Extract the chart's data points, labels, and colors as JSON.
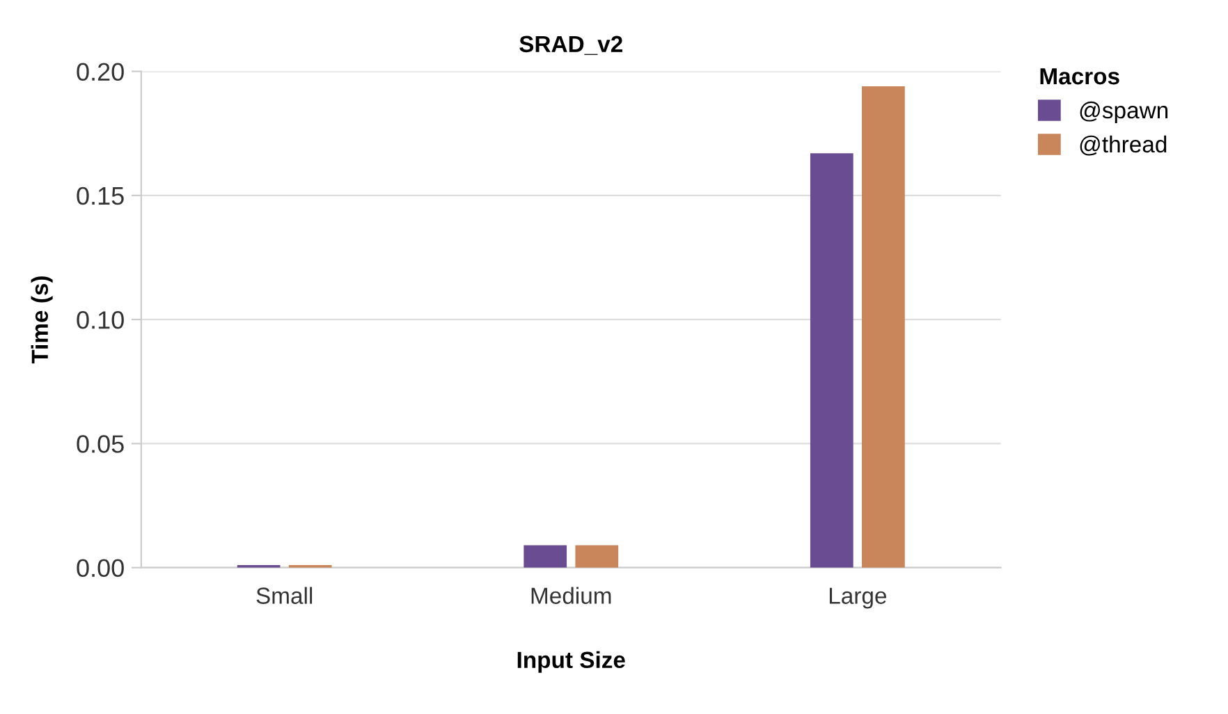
{
  "chart_data": {
    "type": "bar",
    "title": "SRAD_v2",
    "xlabel": "Input Size",
    "ylabel": "Time (s)",
    "legend_title": "Macros",
    "categories": [
      "Small",
      "Medium",
      "Large"
    ],
    "series": [
      {
        "name": "@spawn",
        "color": "#6a4c93",
        "values": [
          0.001,
          0.009,
          0.167
        ]
      },
      {
        "name": "@thread",
        "color": "#c8865a",
        "values": [
          0.001,
          0.009,
          0.194
        ]
      }
    ],
    "ylim": [
      0,
      0.2
    ],
    "yticks": [
      {
        "value": 0,
        "label": "0.00"
      },
      {
        "value": 0.05,
        "label": "0.05"
      },
      {
        "value": 0.1,
        "label": "0.10"
      },
      {
        "value": 0.15,
        "label": "0.15"
      },
      {
        "value": 0.2,
        "label": "0.20"
      }
    ],
    "grid": "y",
    "legend": "top right"
  }
}
